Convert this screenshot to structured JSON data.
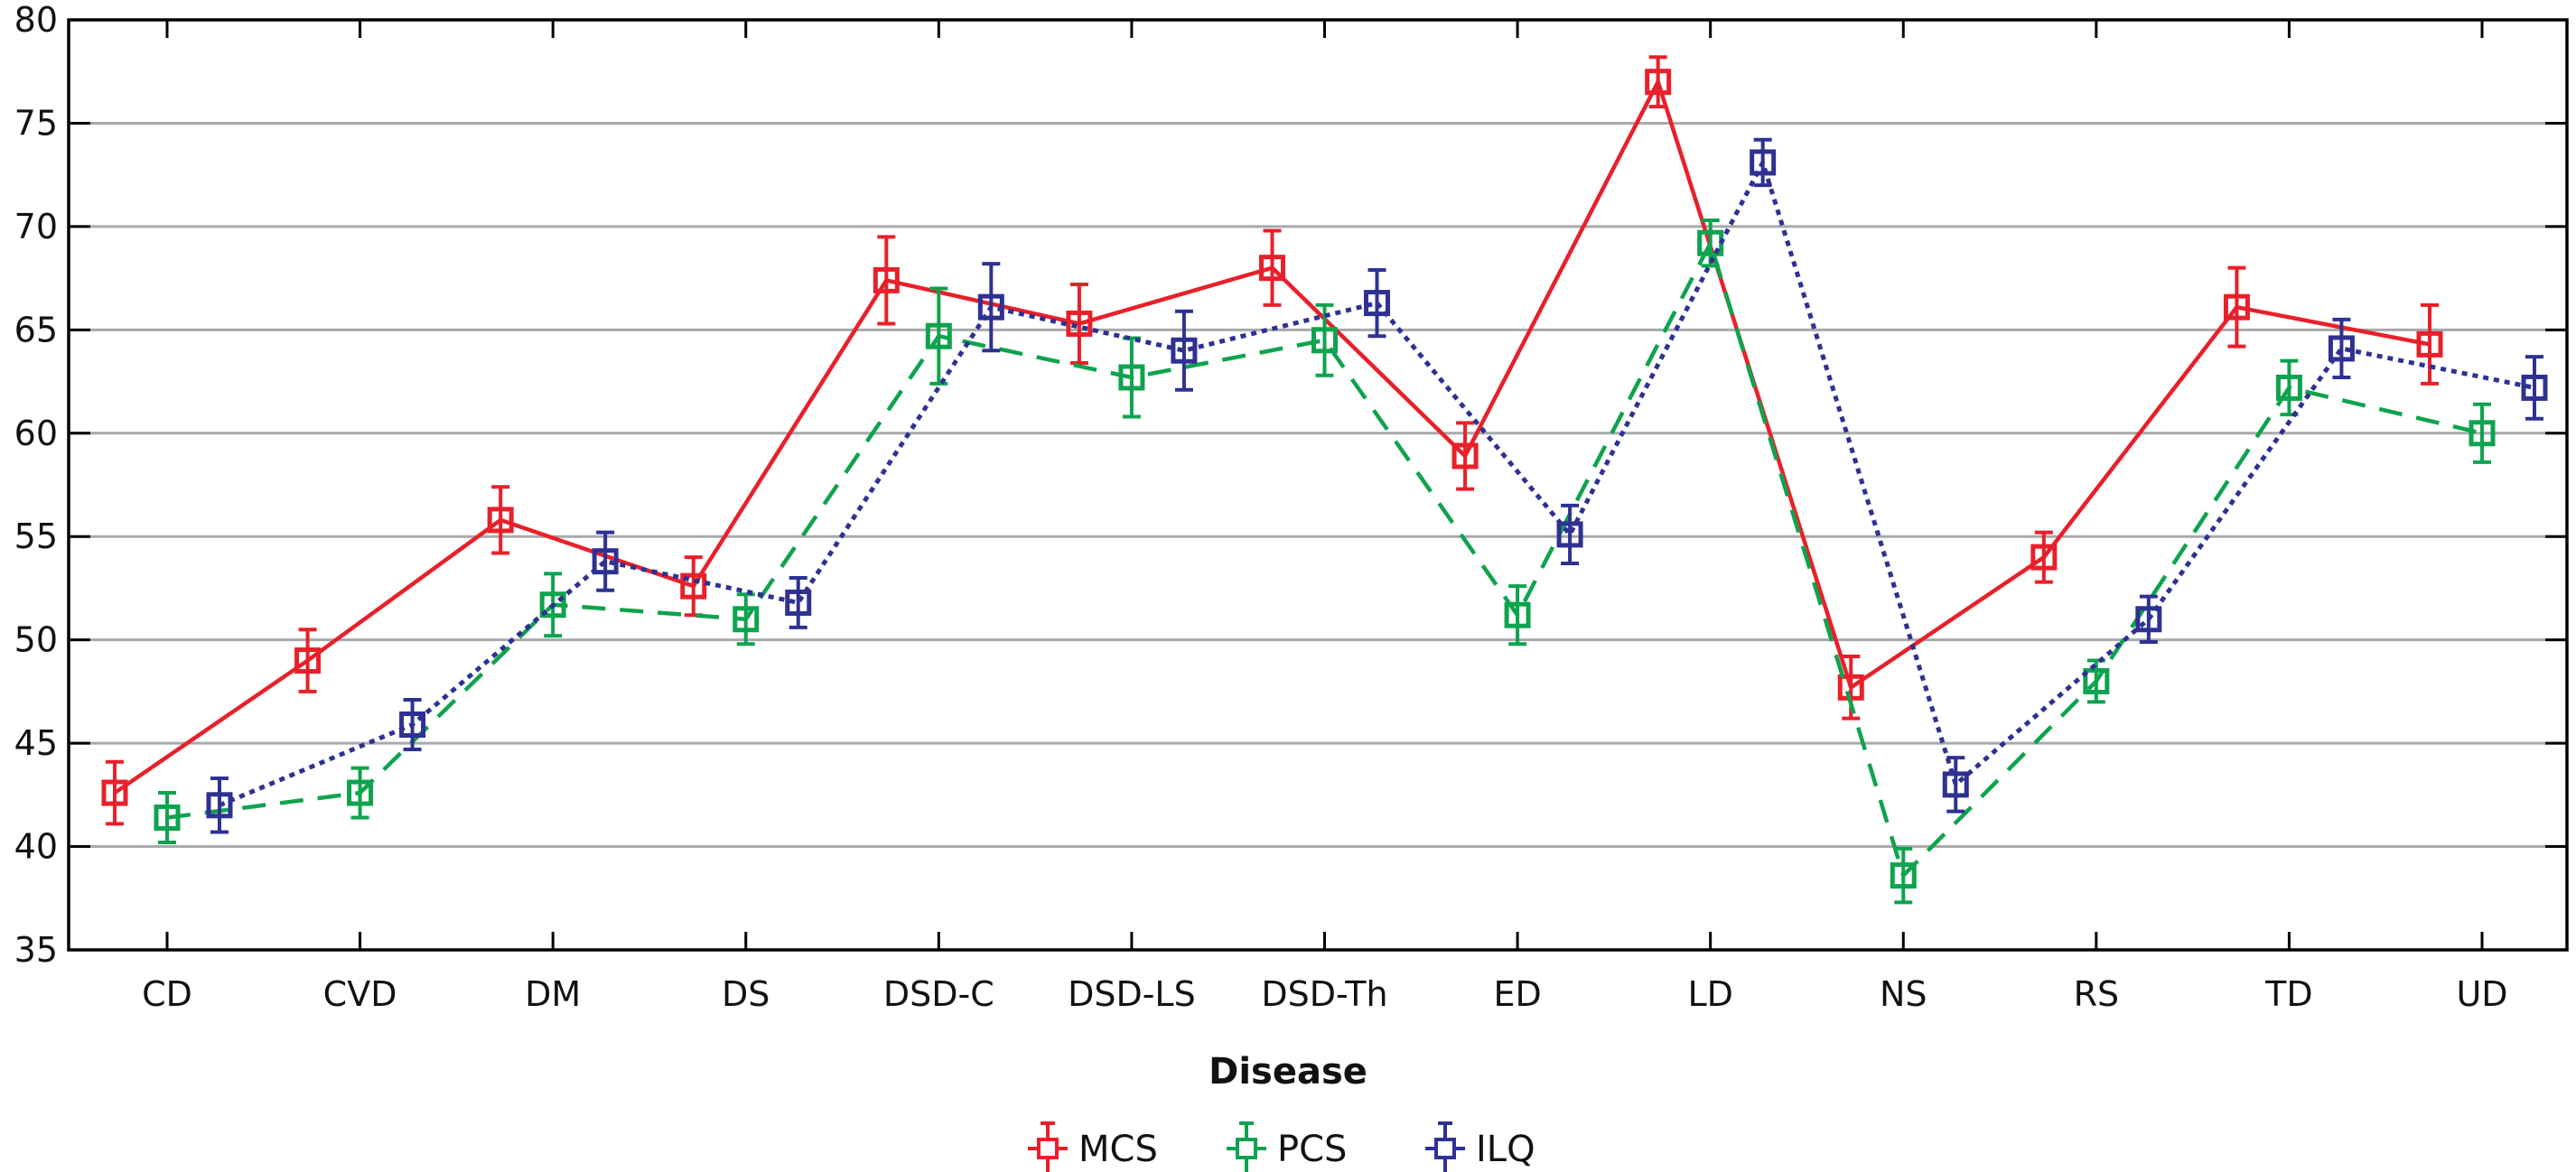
{
  "chart_data": {
    "type": "line",
    "title": "",
    "xlabel": "Disease",
    "ylabel": "",
    "ylim": [
      35,
      80
    ],
    "yticks": [
      35,
      40,
      45,
      50,
      55,
      60,
      65,
      70,
      75,
      80
    ],
    "grid": "horizontal",
    "legend_position": "bottom-center",
    "categories": [
      "CD",
      "CVD",
      "DM",
      "DS",
      "DSD-C",
      "DSD-LS",
      "DSD-Th",
      "ED",
      "LD",
      "NS",
      "RS",
      "TD",
      "UD"
    ],
    "series": [
      {
        "name": "MCS",
        "color": "#e8202a",
        "line_style": "solid",
        "marker": "open-square",
        "values": [
          42.6,
          49.0,
          55.8,
          52.6,
          67.4,
          65.3,
          68.0,
          58.9,
          77.0,
          47.7,
          54.0,
          66.1,
          64.3
        ],
        "errors": [
          1.5,
          1.5,
          1.6,
          1.4,
          2.1,
          1.9,
          1.8,
          1.6,
          1.2,
          1.5,
          1.2,
          1.9,
          1.9
        ]
      },
      {
        "name": "PCS",
        "color": "#0ea34e",
        "line_style": "dashed",
        "marker": "open-square",
        "values": [
          41.4,
          42.6,
          51.7,
          51.0,
          64.7,
          62.7,
          64.5,
          51.2,
          69.2,
          38.6,
          48.0,
          62.2,
          60.0
        ],
        "errors": [
          1.2,
          1.2,
          1.5,
          1.2,
          2.3,
          1.9,
          1.7,
          1.4,
          1.1,
          1.3,
          1.0,
          1.3,
          1.4
        ]
      },
      {
        "name": "ILQ",
        "color": "#2e3192",
        "line_style": "dotted",
        "marker": "open-square",
        "values": [
          42.0,
          45.9,
          53.8,
          51.8,
          66.1,
          64.0,
          66.3,
          55.1,
          73.1,
          43.0,
          51.0,
          64.1,
          62.2
        ],
        "errors": [
          1.3,
          1.2,
          1.4,
          1.2,
          2.1,
          1.9,
          1.6,
          1.4,
          1.1,
          1.3,
          1.1,
          1.4,
          1.5
        ]
      }
    ]
  }
}
